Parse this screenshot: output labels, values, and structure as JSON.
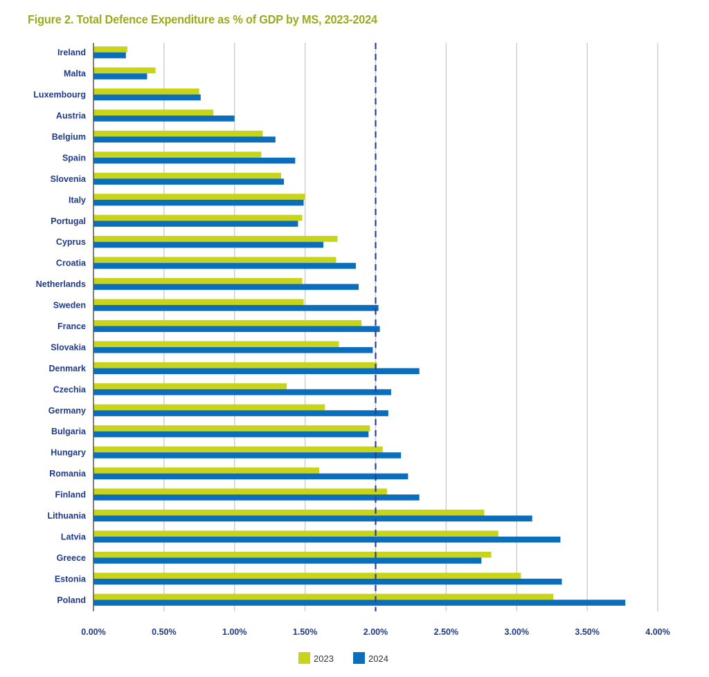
{
  "chart_data": {
    "type": "bar",
    "orientation": "horizontal",
    "title": "Figure 2. Total Defence Expenditure as % of GDP by MS, 2023-2024",
    "xlabel": "",
    "ylabel": "",
    "xlim": [
      0,
      4.0
    ],
    "x_ticks": [
      0,
      0.5,
      1.0,
      1.5,
      2.0,
      2.5,
      3.0,
      3.5,
      4.0
    ],
    "x_tick_labels": [
      "0.00%",
      "0.50%",
      "1.00%",
      "1.50%",
      "2.00%",
      "2.50%",
      "3.00%",
      "3.50%",
      "4.00%"
    ],
    "grid": "vertical",
    "reference_line": {
      "value": 2.0,
      "style": "dashed"
    },
    "legend_position": "bottom-center",
    "categories": [
      "Ireland",
      "Malta",
      "Luxembourg",
      "Austria",
      "Belgium",
      "Spain",
      "Slovenia",
      "Italy",
      "Portugal",
      "Cyprus",
      "Croatia",
      "Netherlands",
      "Sweden",
      "France",
      "Slovakia",
      "Denmark",
      "Czechia",
      "Germany",
      "Bulgaria",
      "Hungary",
      "Romania",
      "Finland",
      "Lithuania",
      "Latvia",
      "Greece",
      "Estonia",
      "Poland"
    ],
    "series": [
      {
        "name": "2023",
        "color": "#c8d419",
        "values": [
          0.24,
          0.44,
          0.75,
          0.85,
          1.2,
          1.19,
          1.33,
          1.5,
          1.48,
          1.73,
          1.72,
          1.48,
          1.49,
          1.9,
          1.74,
          2.01,
          1.37,
          1.64,
          1.96,
          2.05,
          1.6,
          2.08,
          2.77,
          2.87,
          2.82,
          3.03,
          3.26
        ]
      },
      {
        "name": "2024",
        "color": "#0a6ebd",
        "values": [
          0.23,
          0.38,
          0.76,
          1.0,
          1.29,
          1.43,
          1.35,
          1.49,
          1.45,
          1.63,
          1.86,
          1.88,
          2.02,
          2.03,
          1.98,
          2.31,
          2.11,
          2.09,
          1.95,
          2.18,
          2.23,
          2.31,
          3.11,
          3.31,
          2.75,
          3.32,
          3.77
        ]
      }
    ]
  },
  "colors": {
    "title": "#9aab1c",
    "labels": "#1f3a8a",
    "grid": "#c8c8c8",
    "reference_line": "#2b3f9a",
    "axis": "#555555"
  }
}
